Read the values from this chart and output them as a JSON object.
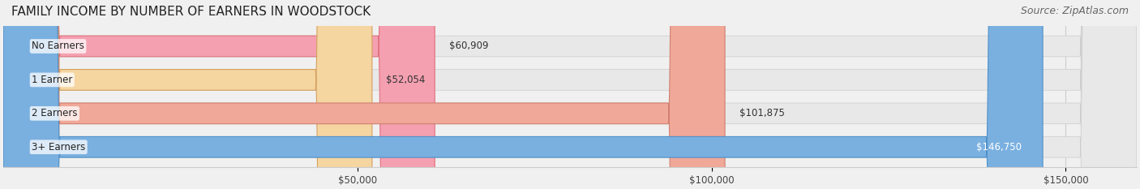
{
  "title": "FAMILY INCOME BY NUMBER OF EARNERS IN WOODSTOCK",
  "source": "Source: ZipAtlas.com",
  "categories": [
    "No Earners",
    "1 Earner",
    "2 Earners",
    "3+ Earners"
  ],
  "values": [
    60909,
    52054,
    101875,
    146750
  ],
  "bar_colors": [
    "#f4a0b0",
    "#f5d5a0",
    "#f0a898",
    "#7ab0e0"
  ],
  "bar_edge_colors": [
    "#e07080",
    "#d4a060",
    "#d08070",
    "#5090c8"
  ],
  "label_colors": [
    "#333333",
    "#333333",
    "#333333",
    "#ffffff"
  ],
  "label_texts": [
    "$60,909",
    "$52,054",
    "$101,875",
    "$146,750"
  ],
  "xlim": [
    0,
    160000
  ],
  "xticks": [
    50000,
    100000,
    150000
  ],
  "xtick_labels": [
    "$50,000",
    "$100,000",
    "$150,000"
  ],
  "background_color": "#f0f0f0",
  "bar_bg_color": "#e8e8e8",
  "title_fontsize": 11,
  "source_fontsize": 9,
  "bar_height": 0.62,
  "figsize": [
    14.06,
    2.33
  ]
}
